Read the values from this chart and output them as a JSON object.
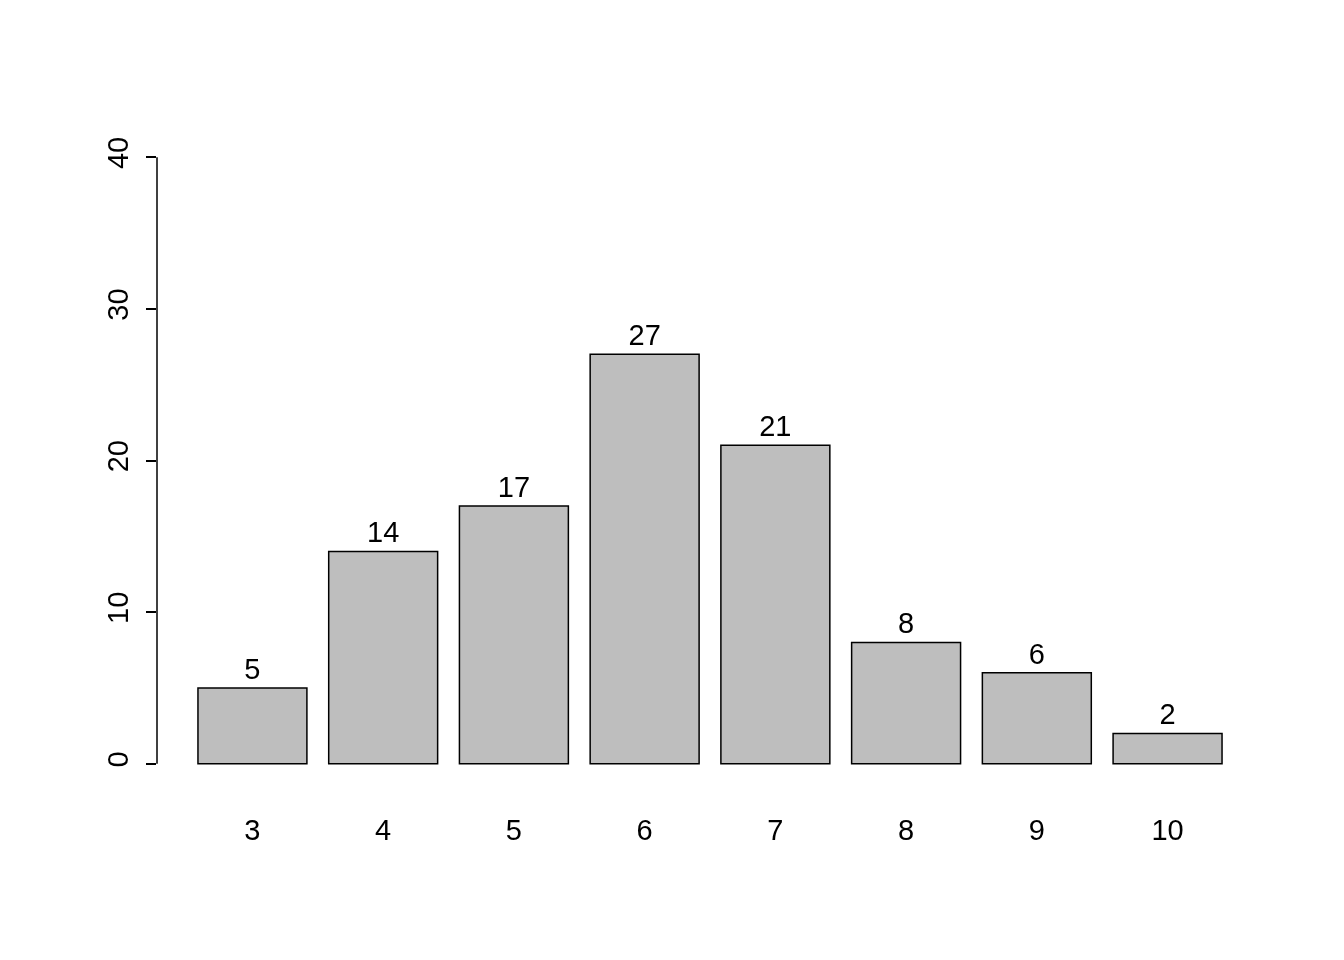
{
  "chart_data": {
    "type": "bar",
    "categories": [
      "3",
      "4",
      "5",
      "6",
      "7",
      "8",
      "9",
      "10"
    ],
    "values": [
      5,
      14,
      17,
      27,
      21,
      8,
      6,
      2
    ],
    "color": "#bebebe",
    "ylim": [
      0,
      40
    ],
    "yticks": [
      0,
      10,
      20,
      30,
      40
    ],
    "data_labels": true
  }
}
